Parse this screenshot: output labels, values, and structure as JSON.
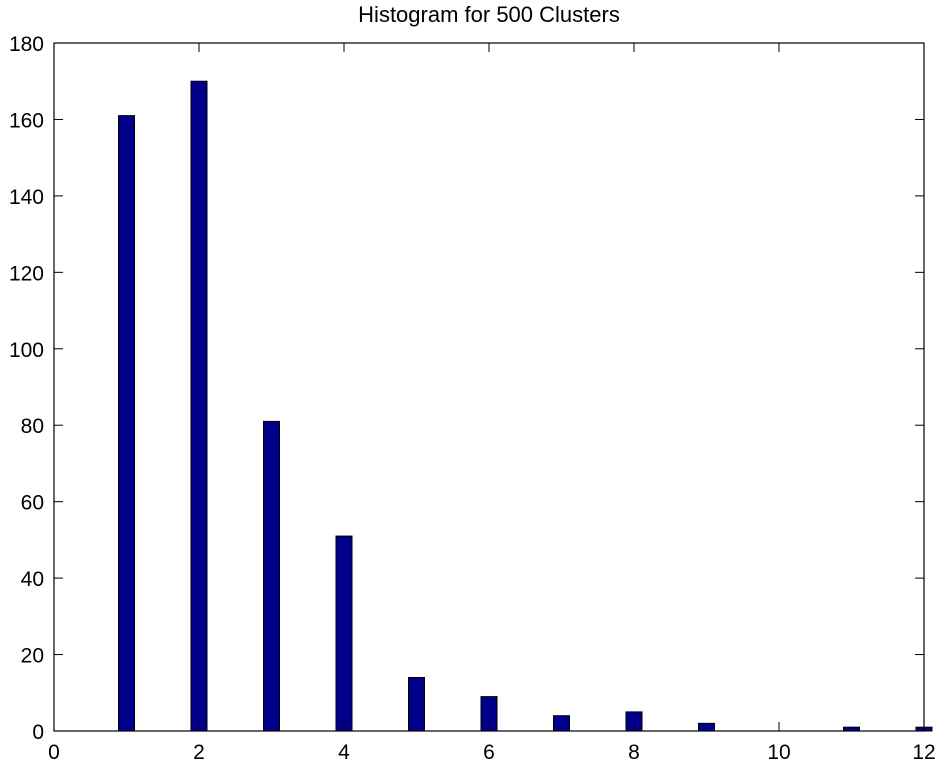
{
  "chart_data": {
    "type": "bar",
    "title": "Histogram for 500 Clusters",
    "xlabel": "",
    "ylabel": "",
    "xlim": [
      0,
      12
    ],
    "ylim": [
      0,
      180
    ],
    "xticks": [
      0,
      2,
      4,
      6,
      8,
      10,
      12
    ],
    "yticks": [
      0,
      20,
      40,
      60,
      80,
      100,
      120,
      140,
      160,
      180
    ],
    "x": [
      1,
      2,
      3,
      4,
      5,
      6,
      7,
      8,
      9,
      10,
      11,
      12
    ],
    "values": [
      161,
      170,
      81,
      51,
      14,
      9,
      4,
      5,
      2,
      0,
      1,
      1
    ],
    "bar_color": "#00008B",
    "bar_edge_color": "#000000",
    "grid": false,
    "legend": "none"
  }
}
